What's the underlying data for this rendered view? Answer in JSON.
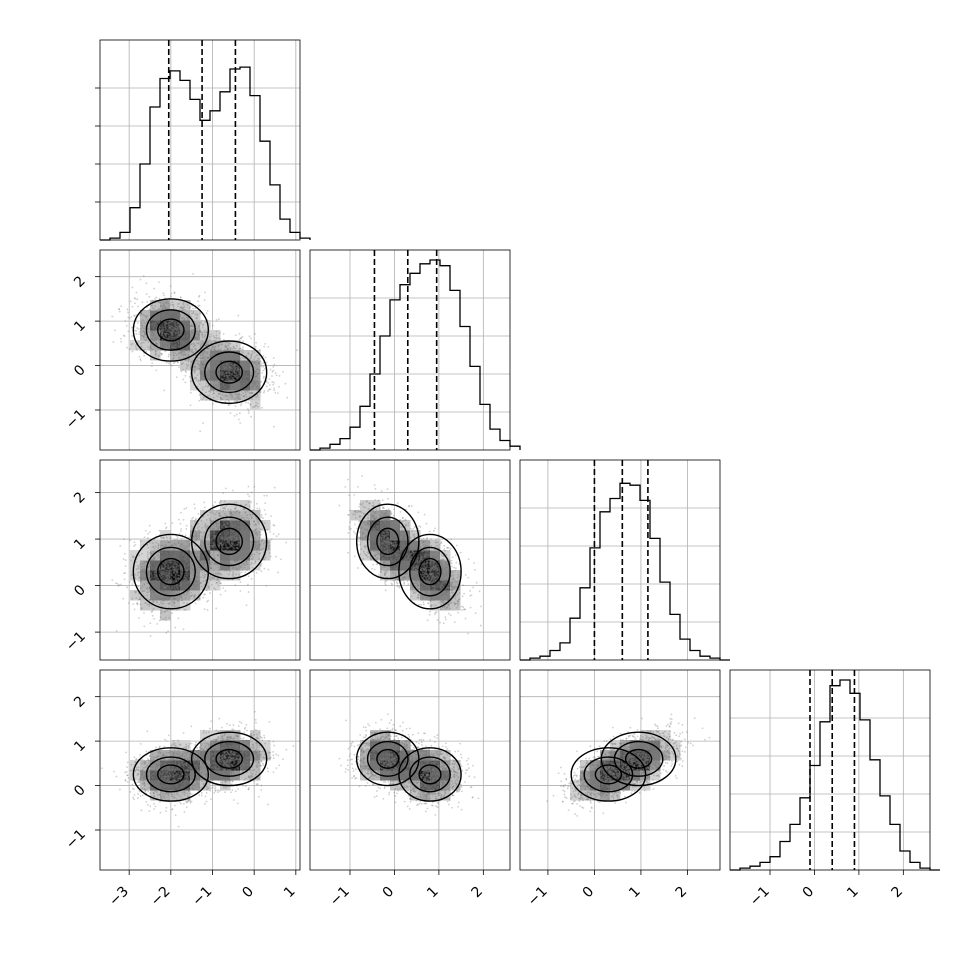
{
  "chart_data": {
    "type": "corner",
    "dimensions": 4,
    "grid": true,
    "params": [
      {
        "lim": [
          -3.7,
          1.1
        ],
        "ticks": [
          -3,
          -2,
          -1,
          0,
          1
        ],
        "tick_labels": [
          "−3",
          "−2",
          "−1",
          "0",
          "1"
        ]
      },
      {
        "lim": [
          -1.9,
          2.6
        ],
        "ticks": [
          -1,
          0,
          1,
          2
        ],
        "tick_labels": [
          "−1",
          "0",
          "1",
          "2"
        ]
      },
      {
        "lim": [
          -1.6,
          2.7
        ],
        "ticks": [
          -1,
          0,
          1,
          2
        ],
        "tick_labels": [
          "−1",
          "0",
          "1",
          "2"
        ]
      },
      {
        "lim": [
          -1.9,
          2.6
        ],
        "ticks": [
          -1,
          0,
          1,
          2
        ],
        "tick_labels": [
          "−1",
          "0",
          "1",
          "2"
        ]
      }
    ],
    "quantiles": [
      [
        -2.05,
        -1.25,
        -0.45
      ],
      [
        -0.45,
        0.3,
        0.95
      ],
      [
        0.0,
        0.6,
        1.15
      ],
      [
        -0.1,
        0.4,
        0.9
      ]
    ],
    "histograms": [
      {
        "bin_start": -3.7,
        "bin_width": 0.24,
        "max": 1.0,
        "counts": [
          0.0,
          0.01,
          0.04,
          0.17,
          0.4,
          0.7,
          0.85,
          0.89,
          0.84,
          0.74,
          0.63,
          0.68,
          0.78,
          0.9,
          0.91,
          0.76,
          0.52,
          0.29,
          0.11,
          0.04,
          0.01
        ]
      },
      {
        "bin_start": -1.9,
        "bin_width": 0.225,
        "max": 1.0,
        "counts": [
          0.0,
          0.01,
          0.03,
          0.06,
          0.12,
          0.23,
          0.4,
          0.6,
          0.79,
          0.87,
          0.93,
          0.98,
          1.0,
          0.97,
          0.84,
          0.65,
          0.44,
          0.24,
          0.11,
          0.05,
          0.02
        ]
      },
      {
        "bin_start": -1.6,
        "bin_width": 0.215,
        "max": 1.0,
        "counts": [
          0.0,
          0.01,
          0.02,
          0.05,
          0.09,
          0.22,
          0.38,
          0.59,
          0.78,
          0.85,
          0.93,
          0.92,
          0.84,
          0.64,
          0.41,
          0.24,
          0.11,
          0.05,
          0.02,
          0.01,
          0.0
        ]
      },
      {
        "bin_start": -1.9,
        "bin_width": 0.225,
        "max": 1.0,
        "counts": [
          0.0,
          0.01,
          0.02,
          0.04,
          0.07,
          0.15,
          0.24,
          0.38,
          0.55,
          0.78,
          0.97,
          1.0,
          0.93,
          0.79,
          0.58,
          0.39,
          0.24,
          0.1,
          0.04,
          0.01,
          0.0
        ]
      }
    ],
    "modes": [
      {
        "w": 0.5,
        "mean": [
          -2.0,
          0.8,
          0.3,
          0.25
        ],
        "sd": [
          0.45,
          0.35,
          0.4,
          0.3
        ]
      },
      {
        "w": 0.5,
        "mean": [
          -0.6,
          -0.15,
          0.95,
          0.6
        ],
        "sd": [
          0.45,
          0.35,
          0.4,
          0.3
        ]
      }
    ],
    "pair_correlations": [
      {
        "row": 1,
        "col": 0,
        "r": -0.2
      },
      {
        "row": 2,
        "col": 0,
        "r": 0.15
      },
      {
        "row": 2,
        "col": 1,
        "r": -0.45
      },
      {
        "row": 3,
        "col": 0,
        "r": 0.1
      },
      {
        "row": 3,
        "col": 1,
        "r": -0.1
      },
      {
        "row": 3,
        "col": 2,
        "r": 0.45
      }
    ]
  }
}
